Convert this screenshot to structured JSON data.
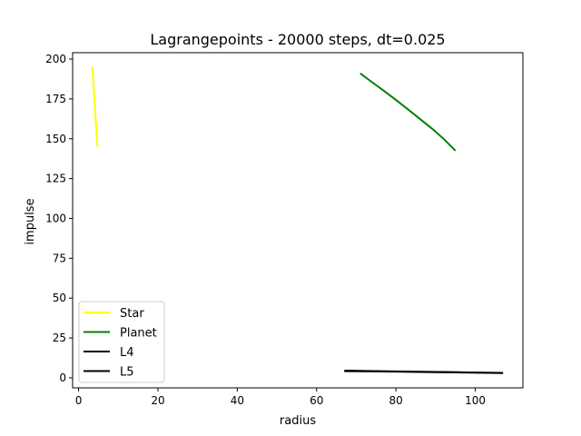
{
  "chart_data": {
    "type": "line",
    "title": "Lagrangepoints - 20000 steps, dt=0.025",
    "xlabel": "radius",
    "ylabel": "impulse",
    "xlim": [
      -1.5,
      112
    ],
    "ylim": [
      -6.3,
      204
    ],
    "xticks": [
      0,
      20,
      40,
      60,
      80,
      100
    ],
    "yticks": [
      0,
      25,
      50,
      75,
      100,
      125,
      150,
      175,
      200
    ],
    "grid": false,
    "legend": "lower-left",
    "series": [
      {
        "name": "Star",
        "color": "#ffff00",
        "x": [
          3.5,
          3.8,
          4.1,
          4.4,
          4.8
        ],
        "y": [
          195,
          182,
          170,
          158,
          145
        ]
      },
      {
        "name": "Planet",
        "color": "#008000",
        "x": [
          71,
          74,
          77,
          80,
          83,
          86,
          89,
          92,
          95
        ],
        "y": [
          191,
          185.5,
          180,
          174.3,
          168.5,
          162.5,
          156.5,
          150,
          142.5
        ]
      },
      {
        "name": "L4",
        "color": "#000000",
        "x": [
          67,
          75,
          82,
          88,
          95,
          101,
          107
        ],
        "y": [
          4.2,
          4.0,
          3.8,
          3.6,
          3.4,
          3.2,
          3.0
        ]
      },
      {
        "name": "L5",
        "color": "#000000",
        "x": [
          67,
          72,
          78,
          84,
          90,
          96,
          101,
          107
        ],
        "y": [
          4.5,
          4.3,
          4.1,
          3.9,
          3.7,
          3.5,
          3.3,
          3.1
        ]
      }
    ]
  }
}
